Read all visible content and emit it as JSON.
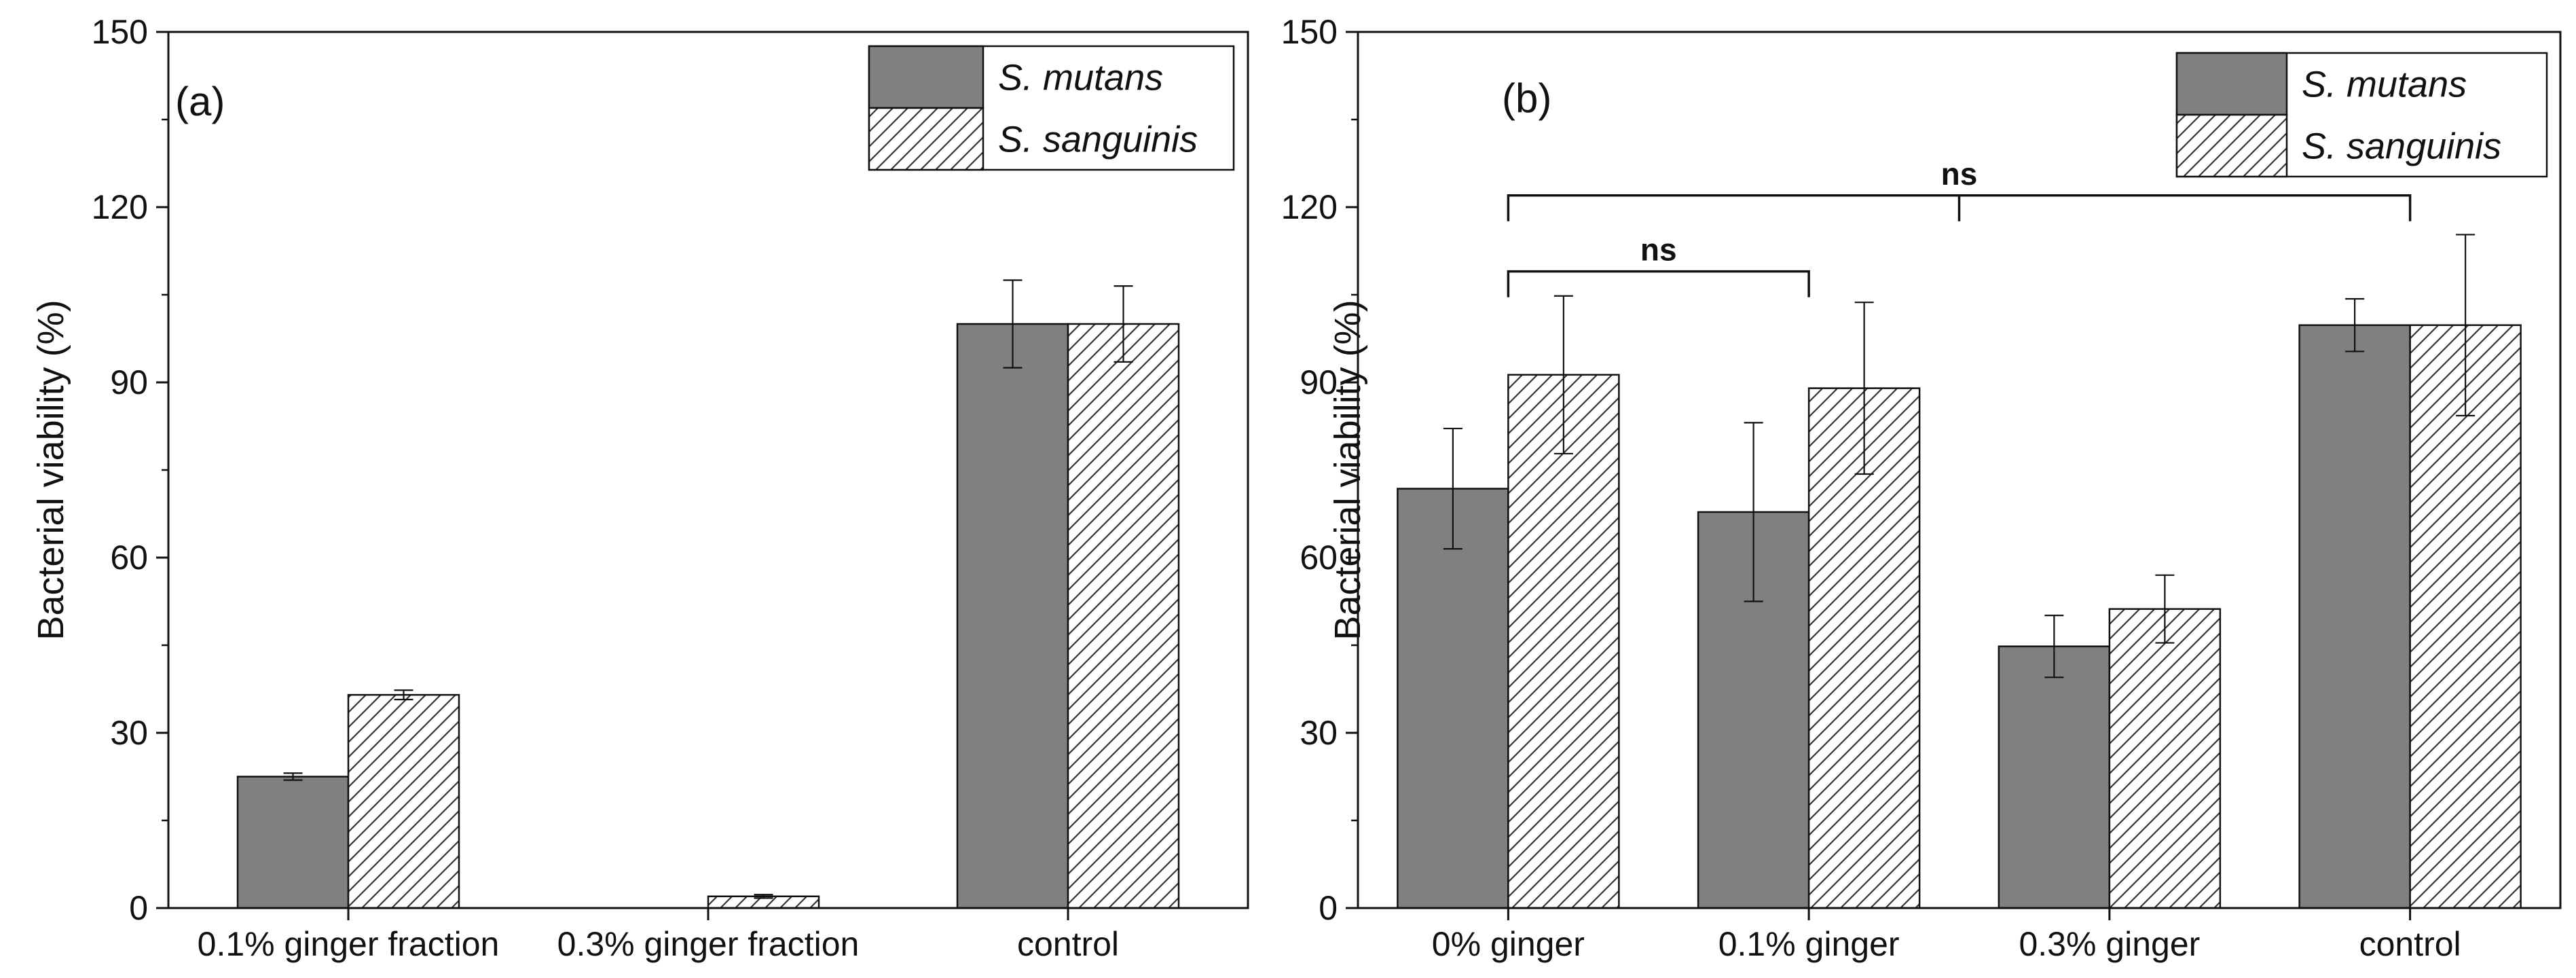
{
  "chart_data": [
    {
      "type": "bar",
      "panel_label": "(a)",
      "categories": [
        "0.1% ginger fraction",
        "0.3% ginger fraction",
        "control"
      ],
      "series": [
        {
          "name": "S. mutans",
          "values": [
            22.5,
            0,
            100
          ],
          "errors": [
            0.6,
            0,
            7.5
          ],
          "fill": "#808080"
        },
        {
          "name": "S. sanguinis",
          "values": [
            36.5,
            2.0,
            100
          ],
          "errors": [
            0.8,
            0.3,
            6.5
          ],
          "fill": "hatch"
        }
      ],
      "ylabel": "Bacterial viability (%)",
      "ylim": [
        0,
        150
      ],
      "yticks": [
        0,
        30,
        60,
        90,
        120,
        150
      ],
      "legend": "top-right",
      "grid": false
    },
    {
      "type": "bar",
      "panel_label": "(b)",
      "categories": [
        "0% ginger",
        "0.1% ginger",
        "0.3% ginger",
        "control"
      ],
      "series": [
        {
          "name": "S. mutans",
          "values": [
            71.8,
            67.8,
            44.8,
            99.8
          ],
          "errors": [
            10.3,
            15.3,
            5.3,
            4.5
          ],
          "fill": "#808080"
        },
        {
          "name": "S. sanguinis",
          "values": [
            91.3,
            89.0,
            51.2,
            99.8
          ],
          "errors": [
            13.5,
            14.7,
            5.8,
            15.5
          ],
          "fill": "hatch"
        }
      ],
      "ylabel": "Bacterial viability (%)",
      "ylim": [
        0,
        150
      ],
      "yticks": [
        0,
        30,
        60,
        90,
        120,
        150
      ],
      "legend": "top-right",
      "grid": false,
      "annotations": [
        {
          "text": "ns",
          "from_category": 0,
          "to_category": 1,
          "y": 109
        },
        {
          "text": "ns",
          "from_category": 0,
          "to_category": 3,
          "y": 122
        }
      ]
    }
  ],
  "colors": {
    "mutans_fill": "#808080",
    "axis": "#111111"
  }
}
